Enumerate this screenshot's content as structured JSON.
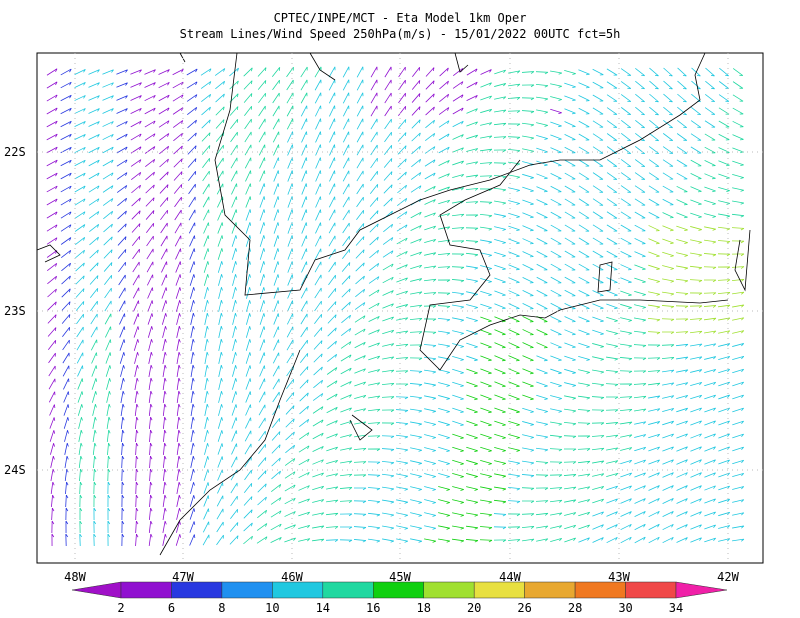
{
  "title": {
    "line1": "CPTEC/INPE/MCT -  Eta Model 1km Oper",
    "line2": "Stream Lines/Wind Speed 250hPa(m/s) - 15/01/2022 00UTC fct=5h"
  },
  "axes": {
    "longitude_labels": [
      "48W",
      "47W",
      "46W",
      "45W",
      "44W",
      "43W",
      "42W"
    ],
    "latitude_labels": [
      "22S",
      "23S",
      "24S"
    ]
  },
  "colorbar": {
    "labels": [
      "2",
      "6",
      "8",
      "10",
      "14",
      "16",
      "18",
      "20",
      "26",
      "28",
      "30",
      "34"
    ],
    "colors": [
      "#9010d0",
      "#2838e0",
      "#2090f0",
      "#20c8e0",
      "#20d8a0",
      "#10d010",
      "#a0e030",
      "#e8e040",
      "#e8a830",
      "#f07820",
      "#f04848"
    ],
    "low_color": "#a010c8",
    "high_color": "#f020a8"
  }
}
